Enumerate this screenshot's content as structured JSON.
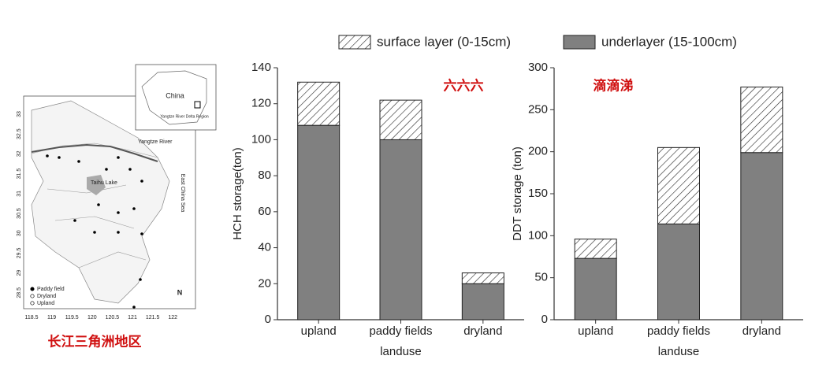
{
  "map": {
    "caption": "长江三角洲地区",
    "places": [
      "China",
      "Yangtze River",
      "East China Sea",
      "Taihu Lake",
      "Yangtze River Delta Region"
    ],
    "legend": [
      "Paddy field",
      "Dryland",
      "Upland"
    ],
    "north": "N",
    "xticks": [
      118.5,
      119,
      119.5,
      120,
      120.5,
      121,
      121.5,
      122
    ],
    "yticks": [
      33,
      32.5,
      32,
      31.5,
      31,
      30.5,
      30,
      29.5,
      29,
      28.5
    ]
  },
  "chart_data": [
    {
      "type": "bar",
      "stacked": true,
      "ylabel": "HCH storage(ton)",
      "xlabel": "landuse",
      "annotation": "六六六",
      "categories": [
        "upland",
        "paddy fields",
        "dryland"
      ],
      "series": [
        {
          "name": "underlayer (15-100cm)",
          "color": "#808080",
          "values": [
            108,
            100,
            20
          ]
        },
        {
          "name": "surface layer (0-15cm)",
          "color": "#ffffff",
          "hatch": true,
          "values": [
            24,
            22,
            6
          ]
        }
      ],
      "ylim": [
        0,
        140
      ],
      "yticks": [
        0,
        20,
        40,
        60,
        80,
        100,
        120,
        140
      ]
    },
    {
      "type": "bar",
      "stacked": true,
      "ylabel": "DDT storage (ton)",
      "xlabel": "landuse",
      "annotation": "滴滴涕",
      "categories": [
        "upland",
        "paddy fields",
        "dryland"
      ],
      "series": [
        {
          "color": "#808080",
          "values": [
            73,
            114,
            199
          ]
        },
        {
          "color": "#ffffff",
          "hatch": true,
          "values": [
            23,
            91,
            78
          ]
        }
      ],
      "ylim": [
        0,
        300
      ],
      "yticks": [
        0,
        50,
        100,
        150,
        200,
        250,
        300
      ]
    }
  ]
}
